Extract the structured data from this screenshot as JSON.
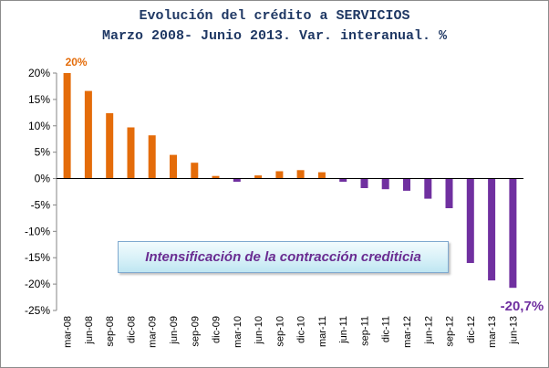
{
  "chart_data": {
    "type": "bar",
    "title": "Evolución del crédito a SERVICIOS",
    "subtitle": "Marzo 2008- Junio 2013. Var. interanual. %",
    "xlabel": "",
    "ylabel": "",
    "ylim": [
      -25,
      20
    ],
    "yticks": [
      "20%",
      "15%",
      "10%",
      "5%",
      "0%",
      "-5%",
      "-10%",
      "-15%",
      "-20%",
      "-25%"
    ],
    "ytick_values": [
      20,
      15,
      10,
      5,
      0,
      -5,
      -10,
      -15,
      -20,
      -25
    ],
    "grid": false,
    "legend": "none",
    "categories": [
      "mar-08",
      "jun-08",
      "sep-08",
      "dic-08",
      "mar-09",
      "jun-09",
      "sep-09",
      "dic-09",
      "mar-10",
      "jun-10",
      "sep-10",
      "dic-10",
      "mar-11",
      "jun-11",
      "sep-11",
      "dic-11",
      "mar-12",
      "jun-12",
      "sep-12",
      "dic-12",
      "mar-13",
      "jun-13"
    ],
    "values": [
      20.0,
      16.6,
      12.4,
      9.7,
      8.2,
      4.5,
      3.0,
      0.5,
      -0.6,
      0.6,
      1.4,
      1.6,
      1.2,
      -0.6,
      -1.8,
      -2.0,
      -2.3,
      -3.8,
      -5.6,
      -16.0,
      -19.3,
      -20.7
    ],
    "positive_color": "#e46c0a",
    "negative_color": "#7030a0",
    "data_labels": [
      {
        "index": 0,
        "text": "20%",
        "color": "#e46c0a"
      },
      {
        "index": 21,
        "text": "-20,7%",
        "color": "#7030a0"
      }
    ],
    "annotation": "Intensificación de la contracción crediticia"
  }
}
